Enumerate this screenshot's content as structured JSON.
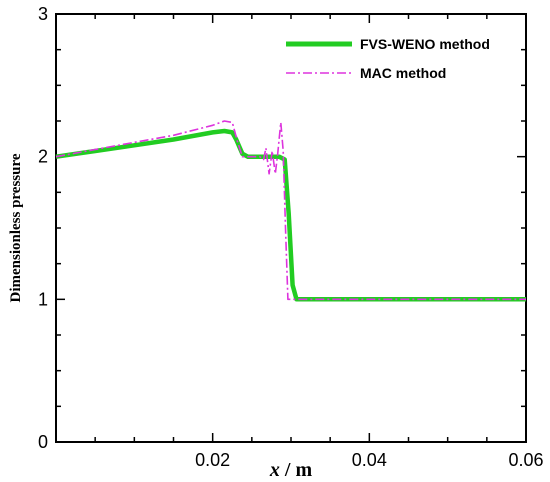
{
  "chart_data": {
    "type": "line",
    "xlabel": "x / m",
    "xlabel_italic_part": "x",
    "xlabel_unit_part": " / m",
    "ylabel": "Dimensionless pressure",
    "xlim": [
      0,
      0.06
    ],
    "ylim": [
      0,
      3
    ],
    "x_ticks": [
      0.02,
      0.04,
      0.06
    ],
    "x_tick_labels": [
      "0.02",
      "0.04",
      "0.06"
    ],
    "y_ticks": [
      0,
      1,
      2,
      3
    ],
    "y_tick_labels": [
      "0",
      "1",
      "2",
      "3"
    ],
    "grid": false,
    "legend_position": "top-right",
    "series": [
      {
        "name": "FVS-WENO method",
        "color": "#22cc22",
        "style": "solid",
        "points": [
          [
            0,
            2.0
          ],
          [
            0.005,
            2.04
          ],
          [
            0.01,
            2.08
          ],
          [
            0.015,
            2.12
          ],
          [
            0.02,
            2.17
          ],
          [
            0.0215,
            2.18
          ],
          [
            0.0225,
            2.17
          ],
          [
            0.023,
            2.12
          ],
          [
            0.0238,
            2.02
          ],
          [
            0.0245,
            2.0
          ],
          [
            0.0285,
            2.0
          ],
          [
            0.0292,
            1.98
          ],
          [
            0.0297,
            1.6
          ],
          [
            0.0302,
            1.1
          ],
          [
            0.0307,
            1.0
          ],
          [
            0.06,
            1.0
          ]
        ]
      },
      {
        "name": "MAC method",
        "color": "#dd33dd",
        "style": "dashdot",
        "points": [
          [
            0,
            2.0
          ],
          [
            0.005,
            2.05
          ],
          [
            0.01,
            2.1
          ],
          [
            0.015,
            2.15
          ],
          [
            0.02,
            2.22
          ],
          [
            0.0215,
            2.25
          ],
          [
            0.0225,
            2.24
          ],
          [
            0.0232,
            2.1
          ],
          [
            0.0238,
            2.0
          ],
          [
            0.026,
            2.0
          ],
          [
            0.0265,
            1.98
          ],
          [
            0.0268,
            2.06
          ],
          [
            0.0272,
            1.88
          ],
          [
            0.0276,
            2.04
          ],
          [
            0.028,
            1.88
          ],
          [
            0.0283,
            2.02
          ],
          [
            0.0287,
            2.24
          ],
          [
            0.029,
            2.04
          ],
          [
            0.0293,
            1.5
          ],
          [
            0.0296,
            1.0
          ],
          [
            0.06,
            1.0
          ]
        ]
      }
    ]
  }
}
